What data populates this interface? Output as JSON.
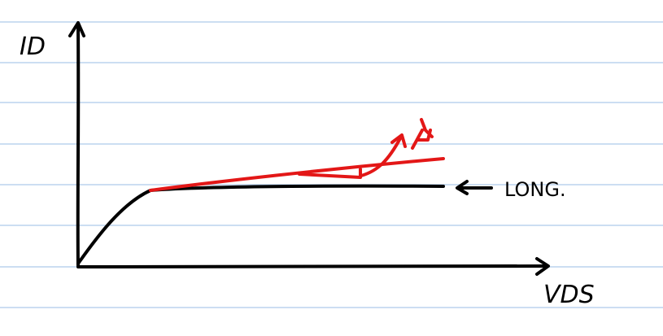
{
  "colors": {
    "paper": "#ffffff",
    "rule": "#bcd4ee",
    "ink": "#000000",
    "red_ink": "#e31717"
  },
  "labels": {
    "y_axis": "ID",
    "x_axis": "VDS",
    "long_curve": "LONG."
  }
}
